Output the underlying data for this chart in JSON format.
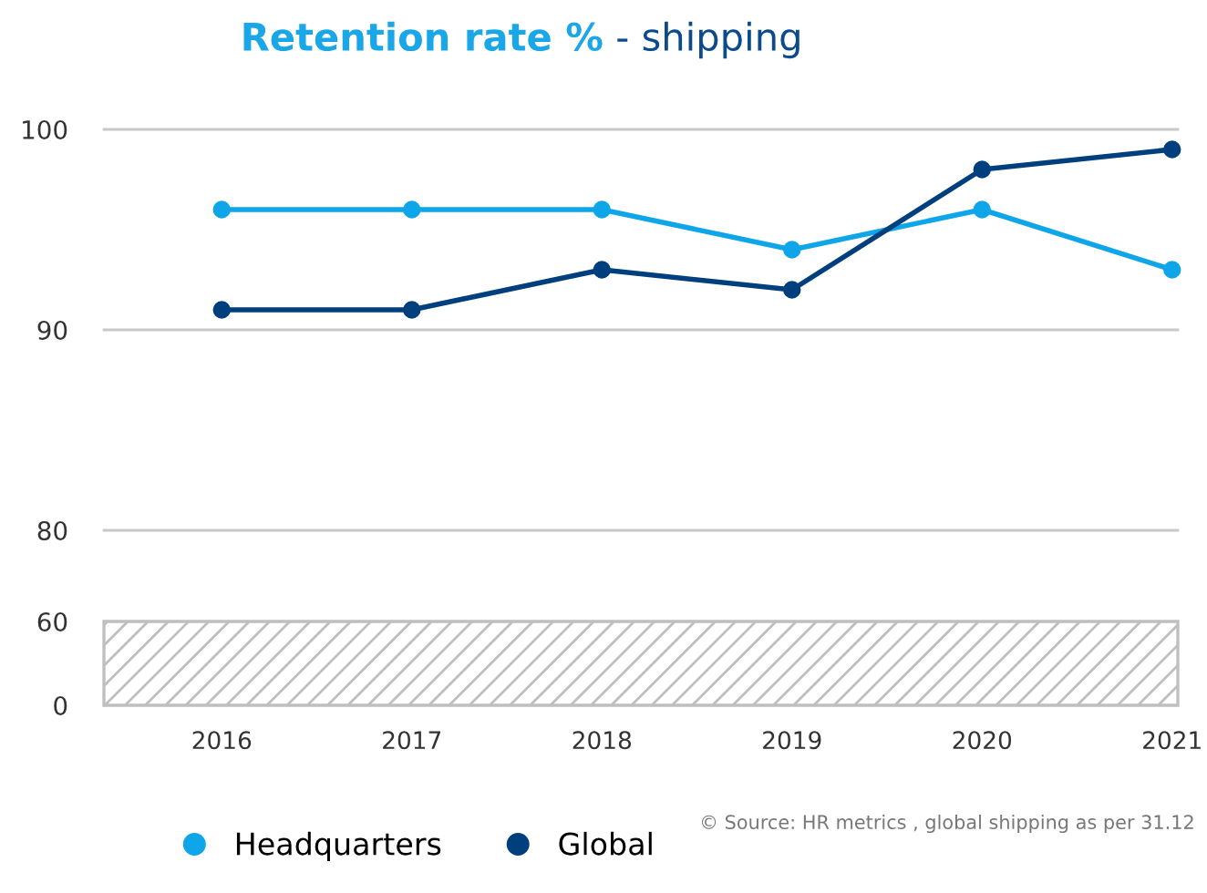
{
  "chart_data": [
    {
      "type": "line",
      "title": "Retention rate %",
      "subtitle": "- shipping",
      "categories": [
        "2016",
        "2017",
        "2018",
        "2019",
        "2020",
        "2021"
      ],
      "series": [
        {
          "name": "Headquarters",
          "color": "#0ea5e9",
          "values": [
            96,
            96,
            96,
            94,
            96,
            93
          ]
        },
        {
          "name": "Global",
          "color": "#003f7d",
          "values": [
            91,
            91,
            93,
            92,
            98,
            99
          ]
        }
      ],
      "ylim": [
        80,
        100
      ],
      "yticks": [
        80,
        90,
        100
      ],
      "tick_labels": "y",
      "grid": "y",
      "legend": "bottom left",
      "marker": "circle",
      "line_style": "solid"
    },
    {
      "type": "line",
      "categories": [
        "2016",
        "2017",
        "2018",
        "2019",
        "2020",
        "2021"
      ],
      "ylim": [
        0,
        60
      ],
      "yticks": [
        0,
        60
      ],
      "bands": [
        {
          "axis": "y",
          "from": 0,
          "to": 60,
          "color": "#bfbfbf"
        }
      ],
      "annotations": [
        "© Source: HR metrics , global shipping as per 31.12"
      ]
    }
  ]
}
